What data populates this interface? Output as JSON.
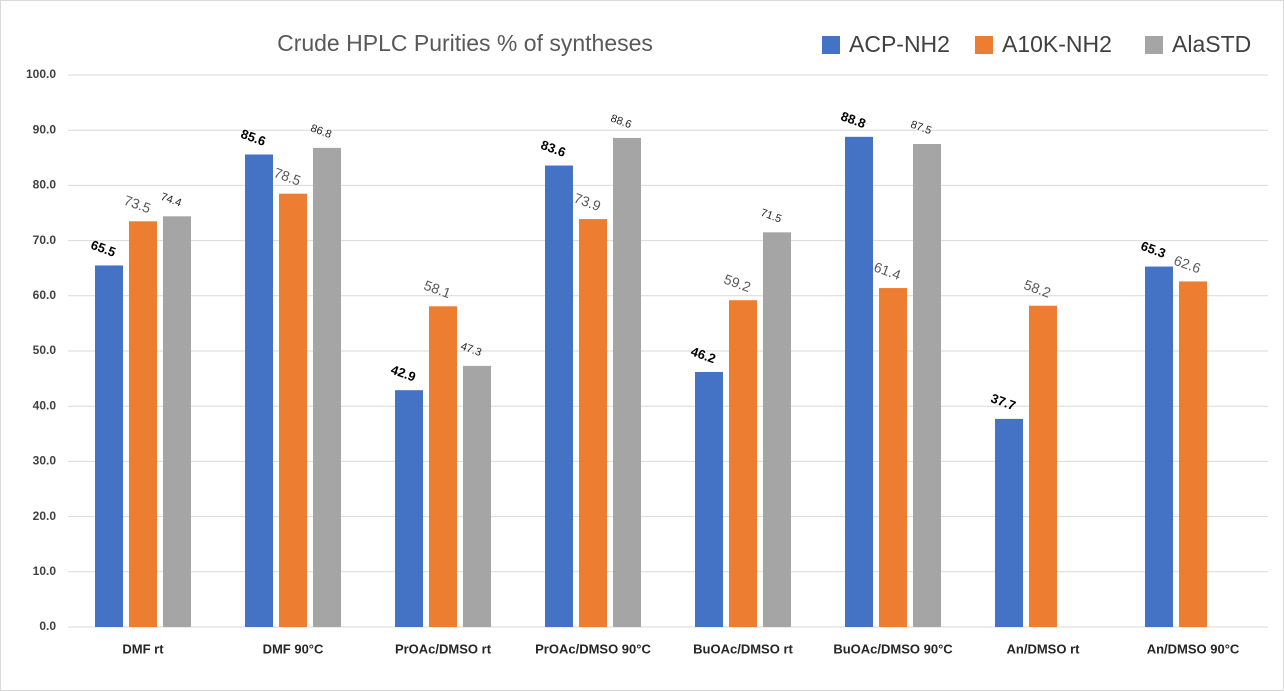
{
  "chart_data": {
    "type": "bar",
    "title": "Crude HPLC Purities % of syntheses",
    "categories": [
      "DMF rt",
      "DMF 90°C",
      "PrOAc/DMSO rt",
      "PrOAc/DMSO 90°C",
      "BuOAc/DMSO rt",
      "BuOAc/DMSO 90°C",
      "An/DMSO rt",
      "An/DMSO 90°C"
    ],
    "series": [
      {
        "name": "ACP-NH2",
        "color": "#4472c4",
        "values": [
          65.5,
          85.6,
          42.9,
          83.6,
          46.2,
          88.8,
          37.7,
          65.3
        ]
      },
      {
        "name": "A10K-NH2",
        "color": "#ed7d31",
        "values": [
          73.5,
          78.5,
          58.1,
          73.9,
          59.2,
          61.4,
          58.2,
          62.6
        ]
      },
      {
        "name": "AlaSTD",
        "color": "#a5a5a5",
        "values": [
          74.4,
          86.8,
          47.3,
          88.6,
          71.5,
          87.5,
          null,
          null
        ]
      }
    ],
    "ylim": [
      0,
      100
    ],
    "yticks": [
      {
        "value": 0,
        "label": "0.0"
      },
      {
        "value": 10,
        "label": "10.0"
      },
      {
        "value": 20,
        "label": "20.0"
      },
      {
        "value": 30,
        "label": "30.0"
      },
      {
        "value": 40,
        "label": "40.0"
      },
      {
        "value": 50,
        "label": "50.0"
      },
      {
        "value": 60,
        "label": "60.0"
      },
      {
        "value": 70,
        "label": "70.0"
      },
      {
        "value": 80,
        "label": "80.0"
      },
      {
        "value": 90,
        "label": "90.0"
      },
      {
        "value": 100,
        "label": "100.0"
      }
    ],
    "grid": true,
    "legend": "top-right"
  }
}
